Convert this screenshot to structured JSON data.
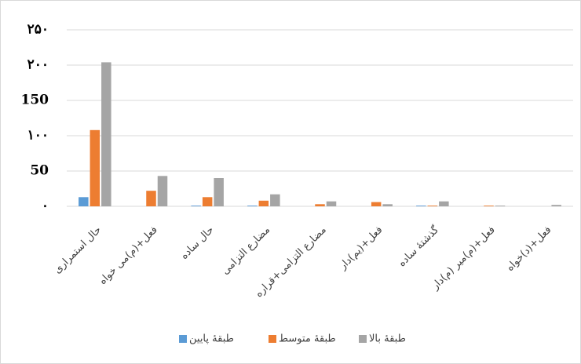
{
  "chart_data": {
    "type": "bar",
    "categories": [
      "حال استمراری",
      "فعل+(م)می خواه",
      "حال ساده",
      "مضارع التزامی",
      "مضارع التزامی+قراره",
      "فعل+(یم)دار",
      "گذشتهٔ ساده",
      "فعل+(م)میر (م)دار",
      "فعل+(د)خواه"
    ],
    "series": [
      {
        "name": "طبقهٔ پایین",
        "color": "#5b9bd5",
        "values": [
          13,
          0,
          1,
          1,
          0,
          0,
          1,
          0,
          0
        ]
      },
      {
        "name": "طبقهٔ متوسط",
        "color": "#ed7d31",
        "values": [
          108,
          22,
          13,
          8,
          3,
          6,
          1,
          1,
          0
        ]
      },
      {
        "name": "طبقهٔ بالا",
        "color": "#a5a5a5",
        "values": [
          204,
          43,
          40,
          17,
          7,
          3,
          7,
          1,
          2
        ]
      }
    ],
    "ylim": [
      0,
      250
    ],
    "yticks": [
      {
        "value": 0,
        "label": "۰"
      },
      50,
      {
        "value": 100,
        "label": "۱۰۰"
      },
      150,
      {
        "value": 200,
        "label": "۲۰۰"
      },
      {
        "value": 250,
        "label": "۲۵۰"
      }
    ],
    "grid": true,
    "legend": "bottom"
  }
}
